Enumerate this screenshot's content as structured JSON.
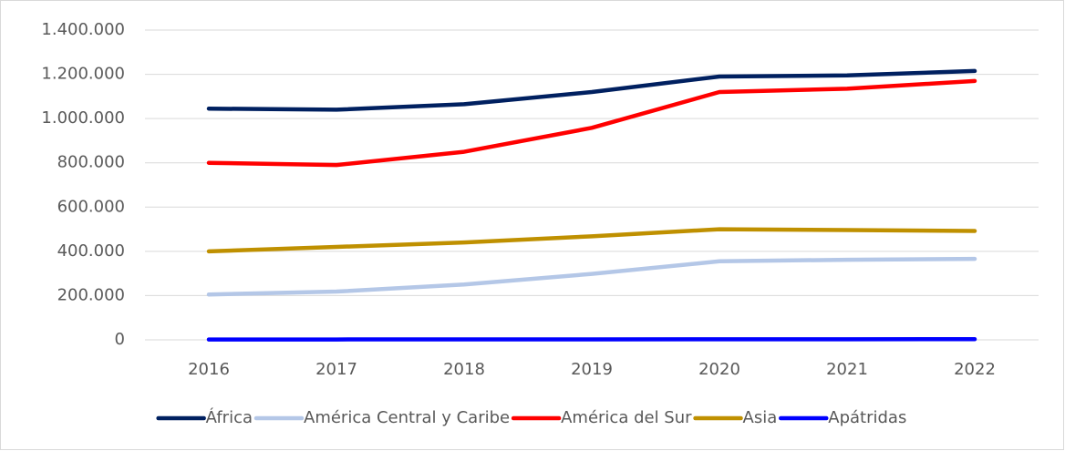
{
  "chart_data": {
    "type": "line",
    "categories": [
      "2016",
      "2017",
      "2018",
      "2019",
      "2020",
      "2021",
      "2022"
    ],
    "series": [
      {
        "name": "África",
        "color": "#002060",
        "values": [
          1045000,
          1040000,
          1065000,
          1120000,
          1190000,
          1195000,
          1215000
        ]
      },
      {
        "name": "América Central y Caribe",
        "color": "#b4c7e7",
        "values": [
          205000,
          218000,
          250000,
          298000,
          355000,
          362000,
          366000
        ]
      },
      {
        "name": "América del Sur",
        "color": "#ff0000",
        "values": [
          800000,
          790000,
          850000,
          958000,
          1120000,
          1135000,
          1170000
        ]
      },
      {
        "name": "Asia",
        "color": "#bf9000",
        "values": [
          400000,
          420000,
          440000,
          468000,
          500000,
          496000,
          492000
        ]
      },
      {
        "name": "Apátridas",
        "color": "#0000ff",
        "values": [
          1500,
          1800,
          2000,
          2200,
          2500,
          2800,
          3000
        ]
      }
    ],
    "ylim": [
      0,
      1400000
    ],
    "yticks": [
      0,
      {
        "value": 200000,
        "label": "200.000"
      },
      {
        "value": 400000,
        "label": "400.000"
      },
      {
        "value": 600000,
        "label": "600.000"
      },
      {
        "value": 800000,
        "label": "800.000"
      },
      {
        "value": 1000000,
        "label": "1.000.000"
      },
      {
        "value": 1200000,
        "label": "1.200.000"
      },
      {
        "value": 1400000,
        "label": "1.400.000"
      }
    ],
    "grid": true,
    "legend": "bottom"
  }
}
